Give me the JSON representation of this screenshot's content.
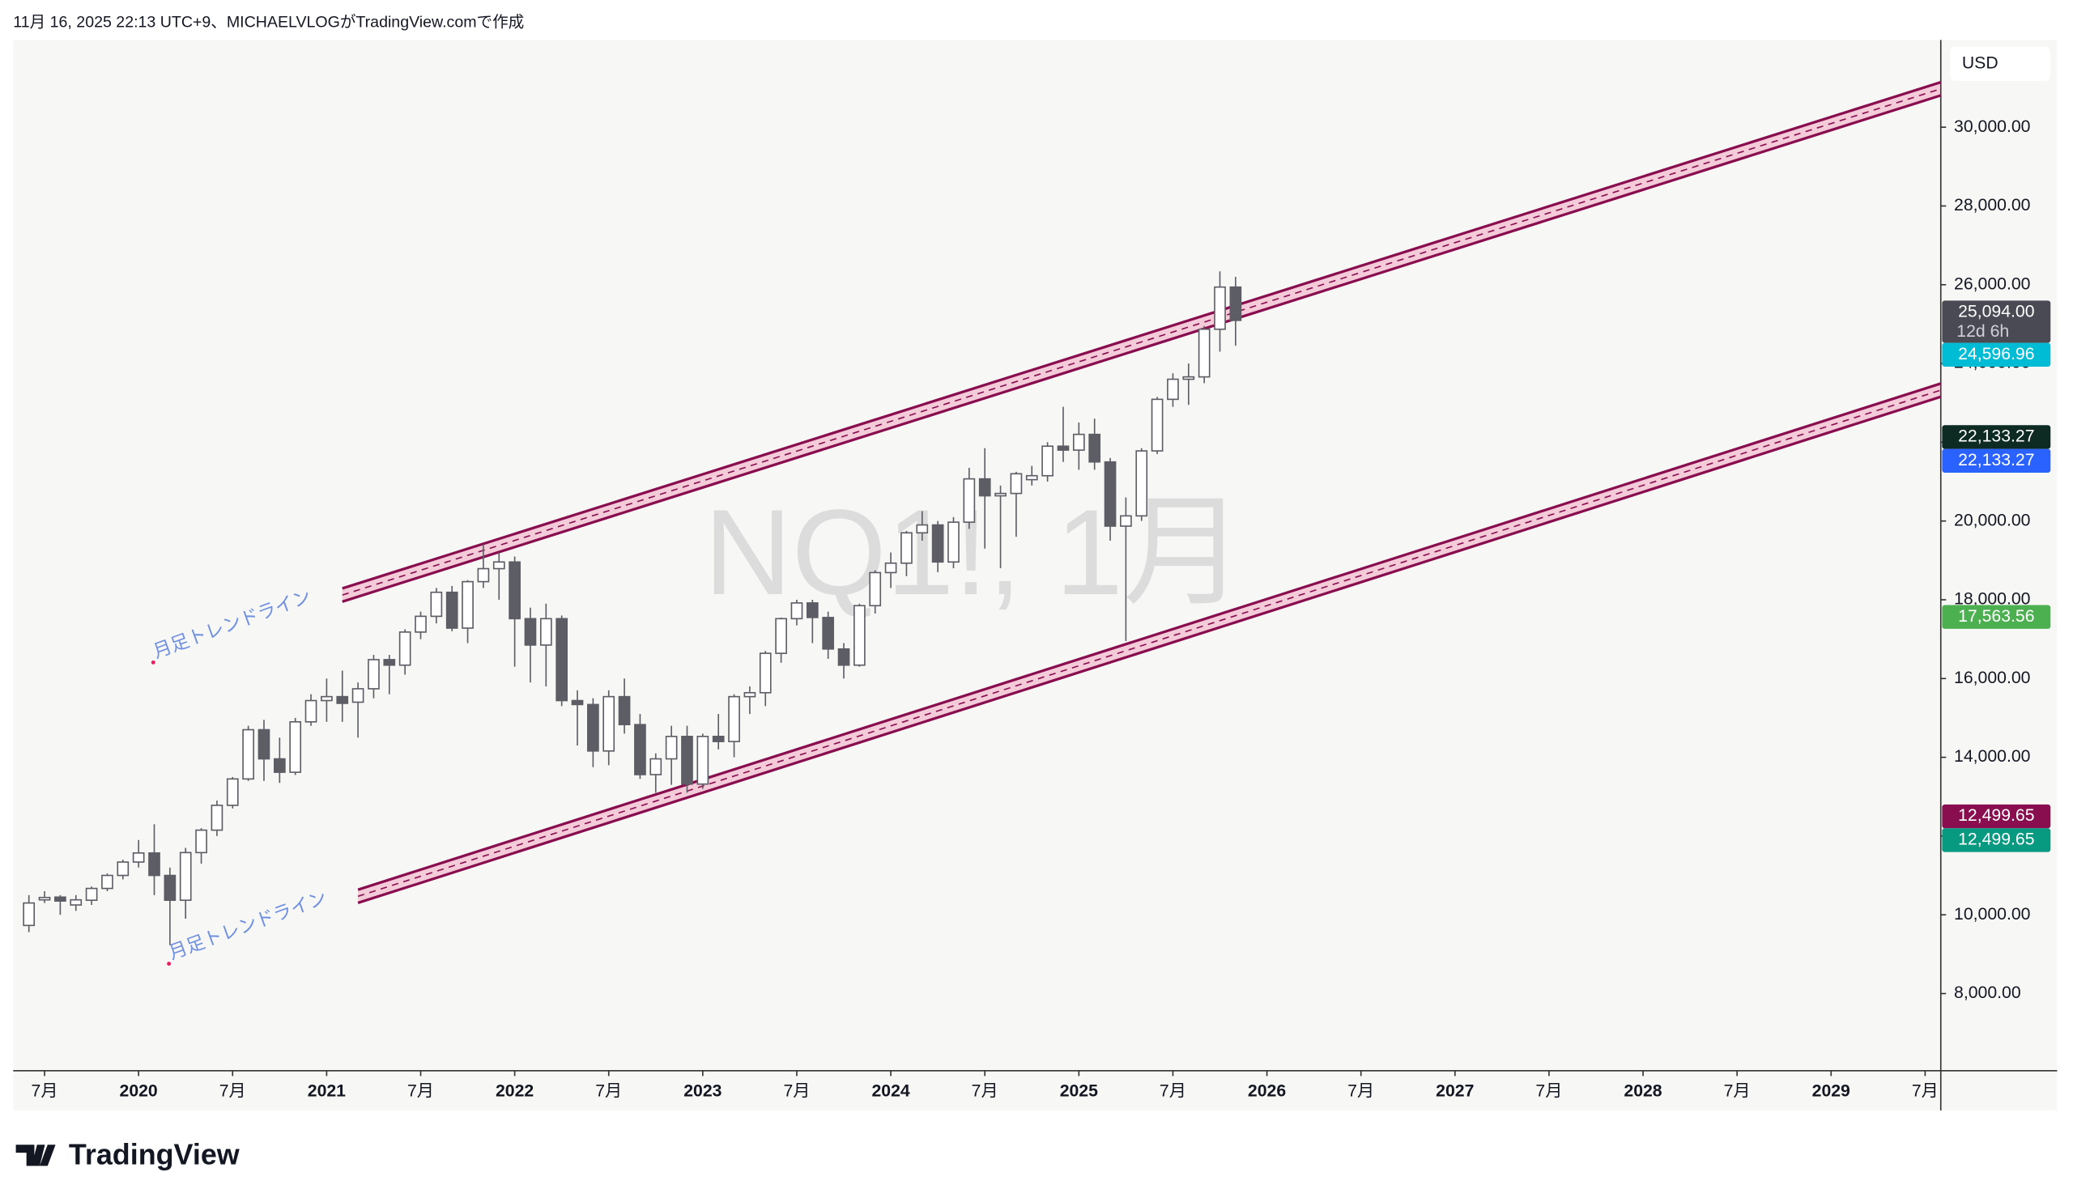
{
  "header": "11月 16, 2025 22:13 UTC+9、MICHAELVLOGがTradingView.comで作成",
  "logo": "TradingView",
  "chart_data": {
    "type": "candlestick",
    "watermark": "NQ1!, 1月",
    "currency": "USD",
    "grid": false,
    "up_color": "#ffffff",
    "down_color": "#5d5d66",
    "wick_color": "#5d5d66",
    "x": [
      "2019-06",
      "2019-07",
      "2019-08",
      "2019-09",
      "2019-10",
      "2019-11",
      "2019-12",
      "2020-01",
      "2020-02",
      "2020-03",
      "2020-04",
      "2020-05",
      "2020-06",
      "2020-07",
      "2020-08",
      "2020-09",
      "2020-10",
      "2020-11",
      "2020-12",
      "2021-01",
      "2021-02",
      "2021-03",
      "2021-04",
      "2021-05",
      "2021-06",
      "2021-07",
      "2021-08",
      "2021-09",
      "2021-10",
      "2021-11",
      "2021-12",
      "2022-01",
      "2022-02",
      "2022-03",
      "2022-04",
      "2022-05",
      "2022-06",
      "2022-07",
      "2022-08",
      "2022-09",
      "2022-10",
      "2022-11",
      "2022-12",
      "2023-01",
      "2023-02",
      "2023-03",
      "2023-04",
      "2023-05",
      "2023-06",
      "2023-07",
      "2023-08",
      "2023-09",
      "2023-10",
      "2023-11",
      "2023-12",
      "2024-01",
      "2024-02",
      "2024-03",
      "2024-04",
      "2024-05",
      "2024-06",
      "2024-07",
      "2024-08",
      "2024-09",
      "2024-10",
      "2024-11",
      "2024-12",
      "2025-01",
      "2025-02",
      "2025-03",
      "2025-04",
      "2025-05",
      "2025-06",
      "2025-07",
      "2025-08",
      "2025-09",
      "2025-10",
      "2025-11"
    ],
    "open": [
      9730,
      10380,
      10450,
      10250,
      10370,
      10670,
      11000,
      11340,
      11570,
      11000,
      10370,
      11580,
      12150,
      12780,
      13450,
      14700,
      13960,
      13620,
      14900,
      15440,
      15540,
      15400,
      15740,
      16480,
      16340,
      17180,
      17580,
      18190,
      17280,
      18460,
      18790,
      18960,
      17520,
      16850,
      17520,
      15440,
      15340,
      14160,
      15540,
      14830,
      13560,
      13960,
      14530,
      13320,
      14530,
      14400,
      15540,
      15640,
      16640,
      17520,
      17920,
      17550,
      16750,
      16340,
      17850,
      18690,
      18930,
      19700,
      19900,
      18960,
      19970,
      21070,
      20640,
      20700,
      21050,
      21150,
      21900,
      21800,
      22200,
      21500,
      19870,
      20130,
      21780,
      23090,
      23600,
      23660,
      24870,
      25940
    ],
    "high": [
      10500,
      10600,
      10500,
      10500,
      10720,
      11050,
      11400,
      11900,
      12300,
      11200,
      11700,
      12200,
      12900,
      13500,
      14800,
      14950,
      14500,
      15000,
      15600,
      16000,
      16200,
      15900,
      16600,
      16600,
      17250,
      17700,
      18300,
      18350,
      18500,
      19400,
      19200,
      19100,
      17800,
      17900,
      17600,
      15700,
      15500,
      15700,
      16000,
      15100,
      14100,
      14800,
      14800,
      14600,
      15100,
      15600,
      15800,
      16700,
      17550,
      18000,
      18000,
      17700,
      16900,
      17900,
      18750,
      19200,
      19750,
      20250,
      20000,
      20100,
      21350,
      21850,
      20900,
      21250,
      21400,
      22000,
      22900,
      22500,
      22600,
      21600,
      20600,
      21850,
      23150,
      23750,
      24000,
      24950,
      26340,
      26200
    ],
    "low": [
      9560,
      10300,
      10000,
      10100,
      10250,
      10600,
      10900,
      11200,
      10500,
      9230,
      9900,
      11300,
      12000,
      12700,
      13400,
      13400,
      13350,
      13550,
      14800,
      14900,
      14900,
      14500,
      15500,
      15600,
      16100,
      17000,
      17400,
      17200,
      16900,
      18300,
      18000,
      16300,
      15900,
      15800,
      15300,
      14300,
      13750,
      13800,
      14600,
      13450,
      13100,
      13300,
      13100,
      13200,
      14200,
      14000,
      15100,
      15300,
      16400,
      17350,
      16900,
      16500,
      16000,
      16300,
      17650,
      18300,
      18600,
      19500,
      18700,
      18800,
      19800,
      19300,
      18800,
      19600,
      20900,
      21000,
      21500,
      21300,
      21300,
      19500,
      16950,
      20000,
      21700,
      22900,
      22950,
      23500,
      24300,
      24450
    ],
    "close": [
      10300,
      10440,
      10350,
      10380,
      10670,
      11000,
      11340,
      11570,
      11000,
      10370,
      11580,
      12150,
      12780,
      13450,
      14700,
      13960,
      13620,
      14900,
      15440,
      15540,
      15370,
      15740,
      16480,
      16340,
      17180,
      17580,
      18190,
      17280,
      18460,
      18790,
      18960,
      17520,
      16850,
      17520,
      15440,
      15340,
      14160,
      15540,
      14830,
      13560,
      13960,
      14530,
      13320,
      14530,
      14400,
      15540,
      15640,
      16640,
      17520,
      17920,
      17550,
      16750,
      16340,
      17850,
      18690,
      18930,
      19700,
      19900,
      18960,
      19970,
      21070,
      20640,
      20700,
      21200,
      21150,
      21900,
      21800,
      22200,
      21500,
      19870,
      20130,
      21780,
      23090,
      23600,
      23660,
      24870,
      25940,
      25094
    ],
    "xlim": [
      "2019-05",
      "2029-08"
    ],
    "xticks": [
      {
        "value": "2019-07",
        "label": "7月"
      },
      {
        "value": "2020-01",
        "label": "2020"
      },
      {
        "value": "2020-07",
        "label": "7月"
      },
      {
        "value": "2021-01",
        "label": "2021"
      },
      {
        "value": "2021-07",
        "label": "7月"
      },
      {
        "value": "2022-01",
        "label": "2022"
      },
      {
        "value": "2022-07",
        "label": "7月"
      },
      {
        "value": "2023-01",
        "label": "2023"
      },
      {
        "value": "2023-07",
        "label": "7月"
      },
      {
        "value": "2024-01",
        "label": "2024"
      },
      {
        "value": "2024-07",
        "label": "7月"
      },
      {
        "value": "2025-01",
        "label": "2025"
      },
      {
        "value": "2025-07",
        "label": "7月"
      },
      {
        "value": "2026-01",
        "label": "2026"
      },
      {
        "value": "2026-07",
        "label": "7月"
      },
      {
        "value": "2027-01",
        "label": "2027"
      },
      {
        "value": "2027-07",
        "label": "7月"
      },
      {
        "value": "2028-01",
        "label": "2028"
      },
      {
        "value": "2028-07",
        "label": "7月"
      },
      {
        "value": "2029-01",
        "label": "2029"
      },
      {
        "value": "2029-07",
        "label": "7月"
      }
    ],
    "ylim": [
      6040,
      32215
    ],
    "yticks": [
      {
        "value": 8000,
        "label": "8,000.00"
      },
      {
        "value": 10000,
        "label": "10,000.00"
      },
      {
        "value": 12000,
        "label": "12,000.00"
      },
      {
        "value": 14000,
        "label": "14,000.00"
      },
      {
        "value": 16000,
        "label": "16,000.00"
      },
      {
        "value": 18000,
        "label": "18,000.00"
      },
      {
        "value": 20000,
        "label": "20,000.00"
      },
      {
        "value": 22000,
        "label": "22,000.00"
      },
      {
        "value": 24000,
        "label": "24,000.00"
      },
      {
        "value": 26000,
        "label": "26,000.00"
      },
      {
        "value": 28000,
        "label": "28,000.00"
      },
      {
        "value": 30000,
        "label": "30,000.00"
      }
    ],
    "trendlines": [
      {
        "label": "月足トレンドライン",
        "color": "#880e4f",
        "x": [
          "2021-02",
          "2029-08"
        ],
        "y": [
          18120,
          30975
        ]
      },
      {
        "label": "月足トレンドライン",
        "color": "#880e4f",
        "x": [
          "2021-03",
          "2029-08"
        ],
        "y": [
          10470,
          23323
        ]
      }
    ],
    "price_markers": [
      {
        "value": 25094,
        "label": "25,094.00",
        "sub": "12d 6h",
        "color": "#4a4a55"
      },
      {
        "value": 24596.96,
        "label": "24,596.96",
        "color": "#00bcd4"
      },
      {
        "value": 22133.27,
        "label": "22,133.27",
        "color": "#0d2b22"
      },
      {
        "value": 22133.27,
        "label": "22,133.27",
        "color": "#2962ff"
      },
      {
        "value": 17563.56,
        "label": "17,563.56",
        "color": "#4caf50"
      },
      {
        "value": 12499.65,
        "label": "12,499.65",
        "color": "#880e4f"
      },
      {
        "value": 12499.65,
        "label": "12,499.65",
        "color": "#089981"
      }
    ]
  }
}
